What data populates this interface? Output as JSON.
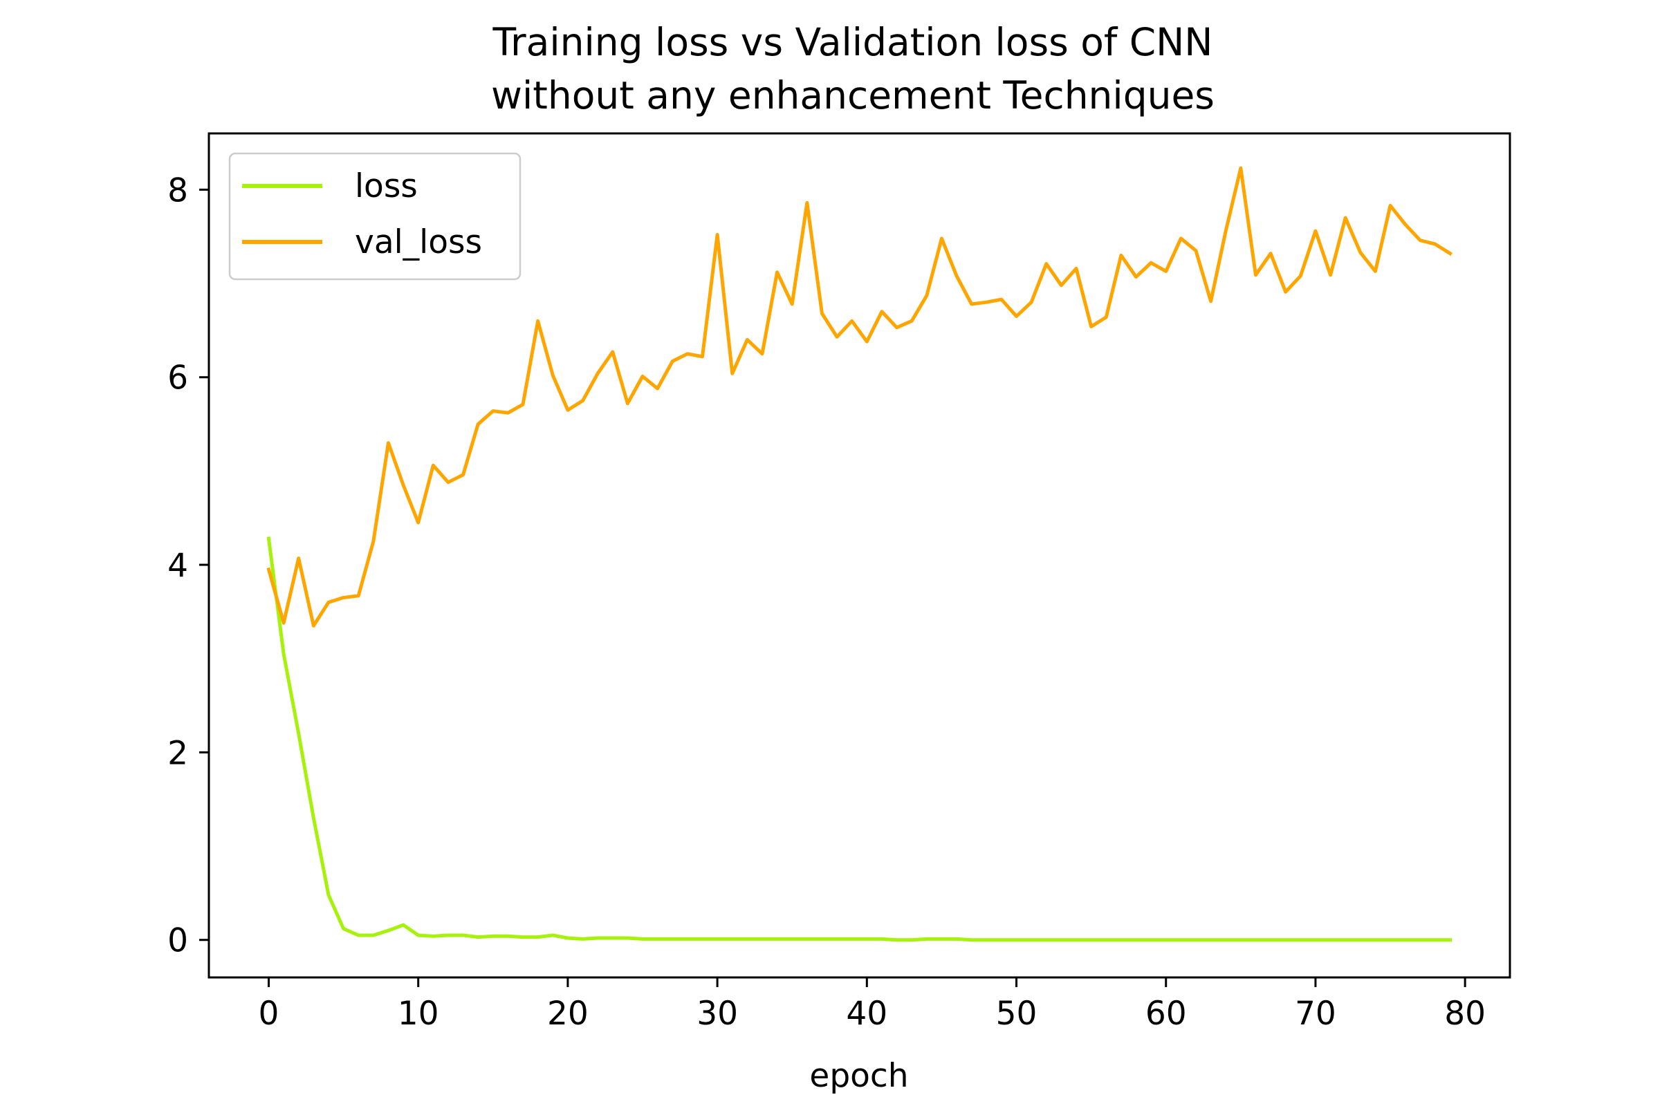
{
  "chart_data": {
    "type": "line",
    "title": [
      "Training loss vs Validation loss of CNN",
      "without any enhancement Techniques"
    ],
    "xlabel": "epoch",
    "ylabel": "",
    "xlim": [
      -4,
      83
    ],
    "ylim": [
      -0.4,
      8.6
    ],
    "xticks": [
      0,
      10,
      20,
      30,
      40,
      50,
      60,
      70,
      80
    ],
    "yticks": [
      0,
      2,
      4,
      6,
      8
    ],
    "grid": false,
    "legend_position": "top-left",
    "series": [
      {
        "name": "loss",
        "color": "#a6f20a",
        "x": [
          0,
          1,
          2,
          3,
          4,
          5,
          6,
          7,
          8,
          9,
          10,
          11,
          12,
          13,
          14,
          15,
          16,
          17,
          18,
          19,
          20,
          21,
          22,
          23,
          24,
          25,
          26,
          27,
          28,
          29,
          30,
          31,
          32,
          33,
          34,
          35,
          36,
          37,
          38,
          39,
          40,
          41,
          42,
          43,
          44,
          45,
          46,
          47,
          48,
          49,
          50,
          51,
          52,
          53,
          54,
          55,
          56,
          57,
          58,
          59,
          60,
          61,
          62,
          63,
          64,
          65,
          66,
          67,
          68,
          69,
          70,
          71,
          72,
          73,
          74,
          75,
          76,
          77,
          78,
          79
        ],
        "values": [
          4.28,
          3.05,
          2.2,
          1.3,
          0.48,
          0.12,
          0.05,
          0.05,
          0.1,
          0.16,
          0.05,
          0.04,
          0.05,
          0.05,
          0.03,
          0.04,
          0.04,
          0.03,
          0.03,
          0.05,
          0.02,
          0.01,
          0.02,
          0.02,
          0.02,
          0.01,
          0.01,
          0.01,
          0.01,
          0.01,
          0.01,
          0.01,
          0.01,
          0.01,
          0.01,
          0.01,
          0.01,
          0.01,
          0.01,
          0.01,
          0.01,
          0.01,
          0.0,
          0.0,
          0.01,
          0.01,
          0.01,
          0.0,
          0.0,
          0.0,
          0.0,
          0.0,
          0.0,
          0.0,
          0.0,
          0.0,
          0.0,
          0.0,
          0.0,
          0.0,
          0.0,
          0.0,
          0.0,
          0.0,
          0.0,
          0.0,
          0.0,
          0.0,
          0.0,
          0.0,
          0.0,
          0.0,
          0.0,
          0.0,
          0.0,
          0.0,
          0.0,
          0.0,
          0.0,
          0.0
        ]
      },
      {
        "name": "val_loss",
        "color": "#ffa500",
        "x": [
          0,
          1,
          2,
          3,
          4,
          5,
          6,
          7,
          8,
          9,
          10,
          11,
          12,
          13,
          14,
          15,
          16,
          17,
          18,
          19,
          20,
          21,
          22,
          23,
          24,
          25,
          26,
          27,
          28,
          29,
          30,
          31,
          32,
          33,
          34,
          35,
          36,
          37,
          38,
          39,
          40,
          41,
          42,
          43,
          44,
          45,
          46,
          47,
          48,
          49,
          50,
          51,
          52,
          53,
          54,
          55,
          56,
          57,
          58,
          59,
          60,
          61,
          62,
          63,
          64,
          65,
          66,
          67,
          68,
          69,
          70,
          71,
          72,
          73,
          74,
          75,
          76,
          77,
          78,
          79
        ],
        "values": [
          3.95,
          3.38,
          4.07,
          3.35,
          3.6,
          3.65,
          3.67,
          4.25,
          5.3,
          4.85,
          4.45,
          5.06,
          4.88,
          4.96,
          5.5,
          5.64,
          5.62,
          5.71,
          6.6,
          6.02,
          5.65,
          5.75,
          6.04,
          6.27,
          5.72,
          6.01,
          5.88,
          6.17,
          6.25,
          6.22,
          7.52,
          6.04,
          6.4,
          6.25,
          7.12,
          6.78,
          7.86,
          6.68,
          6.43,
          6.6,
          6.38,
          6.7,
          6.53,
          6.6,
          6.87,
          7.48,
          7.08,
          6.78,
          6.8,
          6.83,
          6.65,
          6.8,
          7.21,
          6.98,
          7.16,
          6.54,
          6.64,
          7.3,
          7.07,
          7.22,
          7.13,
          7.48,
          7.35,
          6.81,
          7.56,
          8.23,
          7.09,
          7.32,
          6.91,
          7.08,
          7.56,
          7.09,
          7.7,
          7.33,
          7.13,
          7.83,
          7.63,
          7.46,
          7.42,
          7.32
        ]
      }
    ]
  }
}
